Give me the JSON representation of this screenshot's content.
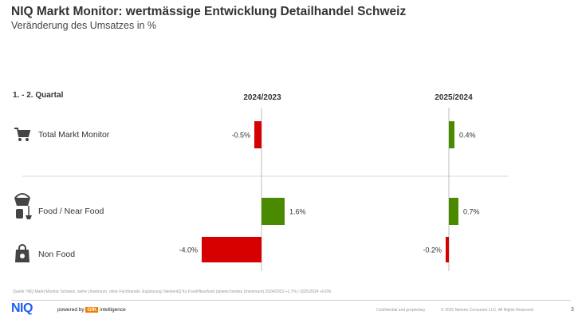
{
  "title": "NIQ Markt Monitor: wertmässige Entwicklung Detailhandel Schweiz",
  "subtitle": "Veränderung des Umsatzes in %",
  "period_label": "1. - 2. Quartal",
  "colors": {
    "positive": "#4a8a00",
    "negative": "#d60000",
    "axis": "#bdbdbd"
  },
  "icons": [
    "shopping-cart-icon",
    "food-basket-icon",
    "shopping-bag-icon"
  ],
  "chart_data": {
    "type": "bar",
    "orientation": "horizontal",
    "categories": [
      "Total Markt Monitor",
      "Food / Near Food",
      "Non Food"
    ],
    "series": [
      {
        "name": "2024/2023",
        "values": [
          -0.5,
          1.6,
          -4.0
        ],
        "labels": [
          "-0.5%",
          "1.6%",
          "-4.0%"
        ]
      },
      {
        "name": "2025/2024",
        "values": [
          0.4,
          0.7,
          -0.2
        ],
        "labels": [
          "0.4%",
          "0.7%",
          "-0.2%"
        ]
      }
    ],
    "title": "NIQ Markt Monitor: wertmässige Entwicklung Detailhandel Schweiz",
    "subtitle": "Veränderung des Umsatzes in %",
    "unit": "%"
  },
  "footer": {
    "source": "Quelle: NIQ Markt Monitor Schweiz, siehe Universum, ohne Fachhandel. Ergänzung: NielsenIQ für Food/Nearfood (abweichendes Universum) 2024/2023 +1.7% | 2025/2024 +0.6%",
    "logo": "NIQ",
    "powered_by": "powered by",
    "gfk": "GfK",
    "intelligence": "intelligence",
    "confidential": "Confidential and proprietary",
    "copyright": "© 2025 Nielsen Consumer LLC. All Rights Reserved.",
    "page": "3"
  }
}
